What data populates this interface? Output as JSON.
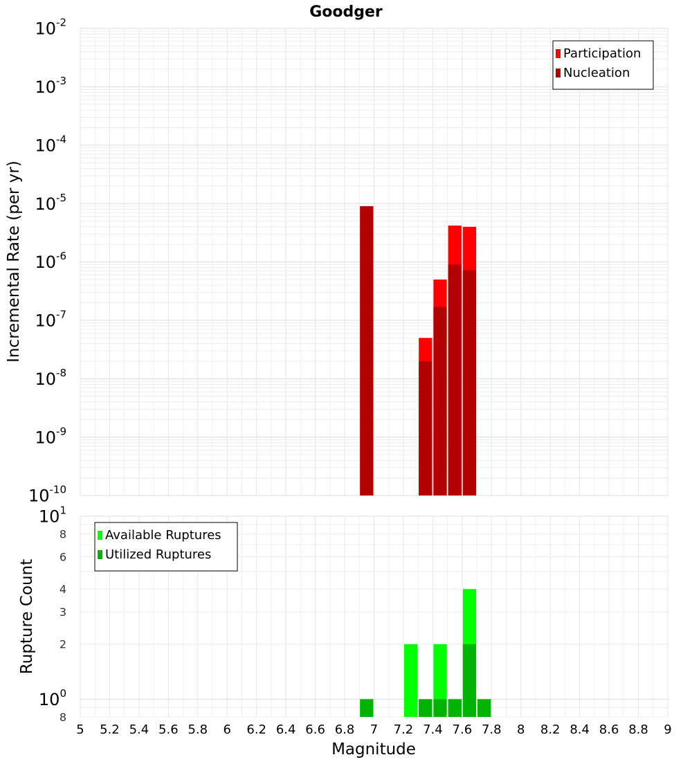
{
  "chart_data": [
    {
      "type": "bar",
      "title": "Goodger",
      "ylabel": "Incremental Rate (per yr)",
      "yscale": "log",
      "xlim": [
        5,
        9
      ],
      "ylim": [
        1e-10,
        0.01
      ],
      "y_ticks": [
        {
          "base": "10",
          "exp": "-10",
          "value": 1e-10
        },
        {
          "base": "10",
          "exp": "-9",
          "value": 1e-09
        },
        {
          "base": "10",
          "exp": "-8",
          "value": 1e-08
        },
        {
          "base": "10",
          "exp": "-7",
          "value": 1e-07
        },
        {
          "base": "10",
          "exp": "-6",
          "value": 1e-06
        },
        {
          "base": "10",
          "exp": "-5",
          "value": 1e-05
        },
        {
          "base": "10",
          "exp": "-4",
          "value": 0.0001
        },
        {
          "base": "10",
          "exp": "-3",
          "value": 0.001
        },
        {
          "base": "10",
          "exp": "-2",
          "value": 0.01
        }
      ],
      "grid": true,
      "legend_position": "top-right",
      "series": [
        {
          "name": "Participation",
          "color": "#ff0000",
          "points": [
            {
              "x": 6.95,
              "y": 9e-06
            },
            {
              "x": 7.35,
              "y": 5e-08
            },
            {
              "x": 7.45,
              "y": 5e-07
            },
            {
              "x": 7.55,
              "y": 4.2e-06
            },
            {
              "x": 7.65,
              "y": 4e-06
            }
          ]
        },
        {
          "name": "Nucleation",
          "color": "#b30000",
          "points": [
            {
              "x": 6.95,
              "y": 9e-06
            },
            {
              "x": 7.35,
              "y": 2e-08
            },
            {
              "x": 7.45,
              "y": 1.7e-07
            },
            {
              "x": 7.55,
              "y": 9e-07
            },
            {
              "x": 7.65,
              "y": 7.2e-07
            }
          ]
        }
      ]
    },
    {
      "type": "bar",
      "xlabel": "Magnitude",
      "ylabel": "Rupture Count",
      "yscale": "log",
      "xlim": [
        5,
        9
      ],
      "ylim": [
        0.8,
        10
      ],
      "x_ticks": [
        "5",
        "5.2",
        "5.4",
        "5.6",
        "5.8",
        "6",
        "6.2",
        "6.4",
        "6.6",
        "6.8",
        "7",
        "7.2",
        "7.4",
        "7.6",
        "7.8",
        "8",
        "8.2",
        "8.4",
        "8.6",
        "8.8",
        "9"
      ],
      "y_ticks": [
        {
          "base": "8",
          "exp": "",
          "value": 0.8,
          "major": false
        },
        {
          "base": "10",
          "exp": "0",
          "value": 1,
          "major": true
        },
        {
          "base": "2",
          "exp": "",
          "value": 2,
          "major": false
        },
        {
          "base": "3",
          "exp": "",
          "value": 3,
          "major": false
        },
        {
          "base": "4",
          "exp": "",
          "value": 4,
          "major": false
        },
        {
          "base": "6",
          "exp": "",
          "value": 6,
          "major": false
        },
        {
          "base": "8",
          "exp": "",
          "value": 8,
          "major": false
        },
        {
          "base": "10",
          "exp": "1",
          "value": 10,
          "major": true
        }
      ],
      "grid": true,
      "legend_position": "top-left",
      "series": [
        {
          "name": "Available Ruptures",
          "color": "#00ff00",
          "points": [
            {
              "x": 6.95,
              "y": 1
            },
            {
              "x": 7.25,
              "y": 2
            },
            {
              "x": 7.35,
              "y": 1
            },
            {
              "x": 7.45,
              "y": 2
            },
            {
              "x": 7.55,
              "y": 1
            },
            {
              "x": 7.65,
              "y": 4
            },
            {
              "x": 7.75,
              "y": 1
            }
          ]
        },
        {
          "name": "Utilized Ruptures",
          "color": "#00b300",
          "points": [
            {
              "x": 6.95,
              "y": 1
            },
            {
              "x": 7.35,
              "y": 1
            },
            {
              "x": 7.45,
              "y": 1
            },
            {
              "x": 7.55,
              "y": 1
            },
            {
              "x": 7.65,
              "y": 2
            },
            {
              "x": 7.75,
              "y": 1
            }
          ]
        }
      ]
    }
  ]
}
